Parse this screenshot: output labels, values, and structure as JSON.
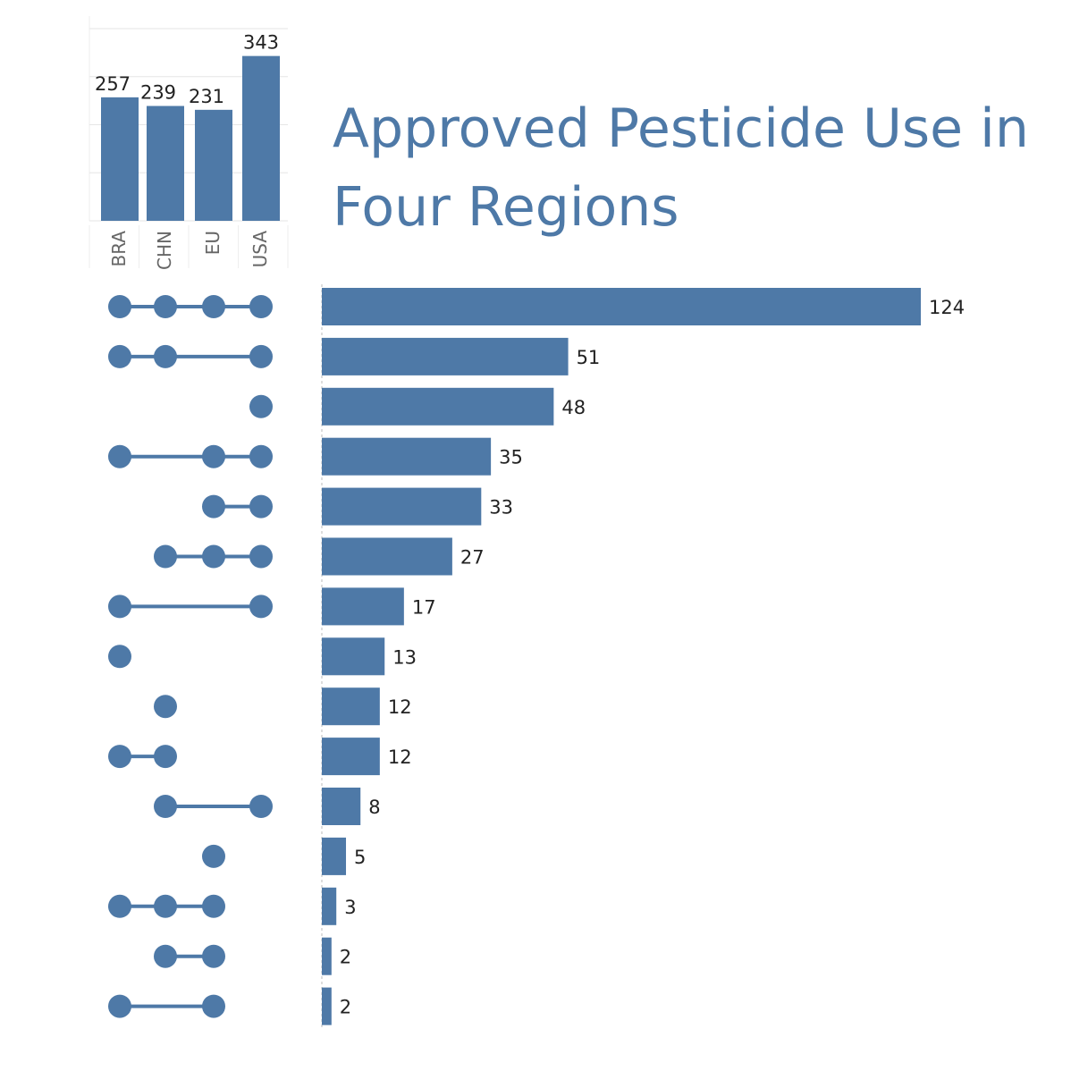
{
  "title": "Approved Pesticide Use in Four Regions",
  "colors": {
    "accent": "#4e79a7",
    "axis_text": "#666666",
    "value_text": "#222222",
    "grid": "#e6e6e6"
  },
  "chart_data": [
    {
      "type": "bar",
      "orientation": "vertical",
      "categories": [
        "BRA",
        "CHN",
        "EU",
        "USA"
      ],
      "values": [
        257,
        239,
        231,
        343
      ],
      "ylim": [
        0,
        400
      ],
      "grid": true,
      "data_labels": true
    },
    {
      "type": "bar",
      "orientation": "horizontal",
      "set_order": [
        "BRA",
        "CHN",
        "EU",
        "USA"
      ],
      "combinations": [
        {
          "sets": [
            "BRA",
            "CHN",
            "EU",
            "USA"
          ],
          "value": 124
        },
        {
          "sets": [
            "BRA",
            "CHN",
            "USA"
          ],
          "value": 51
        },
        {
          "sets": [
            "USA"
          ],
          "value": 48
        },
        {
          "sets": [
            "BRA",
            "EU",
            "USA"
          ],
          "value": 35
        },
        {
          "sets": [
            "EU",
            "USA"
          ],
          "value": 33
        },
        {
          "sets": [
            "CHN",
            "EU",
            "USA"
          ],
          "value": 27
        },
        {
          "sets": [
            "BRA",
            "USA"
          ],
          "value": 17
        },
        {
          "sets": [
            "BRA"
          ],
          "value": 13
        },
        {
          "sets": [
            "CHN"
          ],
          "value": 12
        },
        {
          "sets": [
            "BRA",
            "CHN"
          ],
          "value": 12
        },
        {
          "sets": [
            "CHN",
            "USA"
          ],
          "value": 8
        },
        {
          "sets": [
            "EU"
          ],
          "value": 5
        },
        {
          "sets": [
            "BRA",
            "CHN",
            "EU"
          ],
          "value": 3
        },
        {
          "sets": [
            "CHN",
            "EU"
          ],
          "value": 2
        },
        {
          "sets": [
            "BRA",
            "EU"
          ],
          "value": 2
        }
      ],
      "xlim": [
        0,
        124
      ],
      "data_labels": true
    }
  ]
}
